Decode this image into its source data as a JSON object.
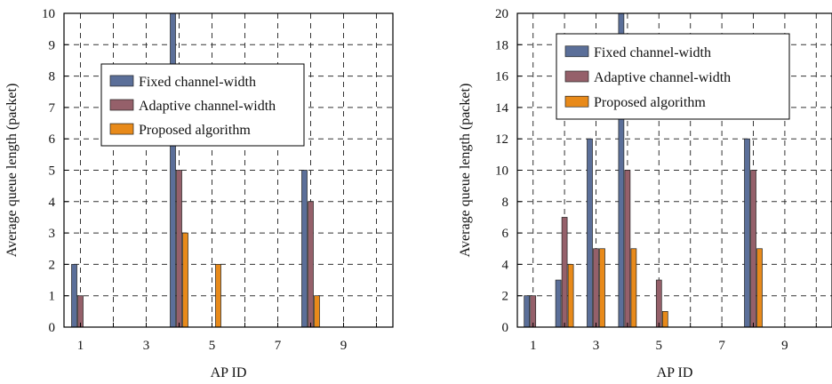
{
  "chart_data": [
    {
      "type": "bar",
      "xlabel": "AP ID",
      "ylabel": "Average queue length (packet)",
      "categories": [
        "1",
        "2",
        "3",
        "4",
        "5",
        "6",
        "7",
        "8",
        "9",
        "10"
      ],
      "x_tick_labels": [
        "1",
        "3",
        "5",
        "7",
        "9"
      ],
      "ylim": [
        0,
        10
      ],
      "y_ticks": [
        0,
        1,
        2,
        3,
        4,
        5,
        6,
        7,
        8,
        9,
        10
      ],
      "grid": true,
      "legend_position": "upper-left",
      "series": [
        {
          "name": "Fixed channel-width",
          "color": "#5b6f99",
          "values": [
            2,
            0,
            0,
            10,
            0,
            0,
            0,
            5,
            0,
            0
          ]
        },
        {
          "name": "Adaptive channel-width",
          "color": "#95606a",
          "values": [
            1,
            0,
            0,
            5,
            0,
            0,
            0,
            4,
            0,
            0
          ]
        },
        {
          "name": "Proposed algorithm",
          "color": "#e88a1a",
          "values": [
            0,
            0,
            0,
            3,
            2,
            0,
            0,
            1,
            0,
            0
          ]
        }
      ]
    },
    {
      "type": "bar",
      "xlabel": "AP ID",
      "ylabel": "Average queue length (packet)",
      "categories": [
        "1",
        "2",
        "3",
        "4",
        "5",
        "6",
        "7",
        "8",
        "9",
        "10"
      ],
      "x_tick_labels": [
        "1",
        "3",
        "5",
        "7",
        "9"
      ],
      "ylim": [
        0,
        20
      ],
      "y_ticks": [
        0,
        2,
        4,
        6,
        8,
        10,
        12,
        14,
        16,
        18,
        20
      ],
      "grid": true,
      "legend_position": "upper-left",
      "series": [
        {
          "name": "Fixed channel-width",
          "color": "#5b6f99",
          "values": [
            2,
            3,
            12,
            20,
            0,
            0,
            0,
            12,
            0,
            0
          ]
        },
        {
          "name": "Adaptive channel-width",
          "color": "#95606a",
          "values": [
            2,
            7,
            5,
            10,
            3,
            0,
            0,
            10,
            0,
            0
          ]
        },
        {
          "name": "Proposed algorithm",
          "color": "#e88a1a",
          "values": [
            0,
            4,
            5,
            5,
            1,
            0,
            0,
            5,
            0,
            0
          ]
        }
      ]
    }
  ]
}
